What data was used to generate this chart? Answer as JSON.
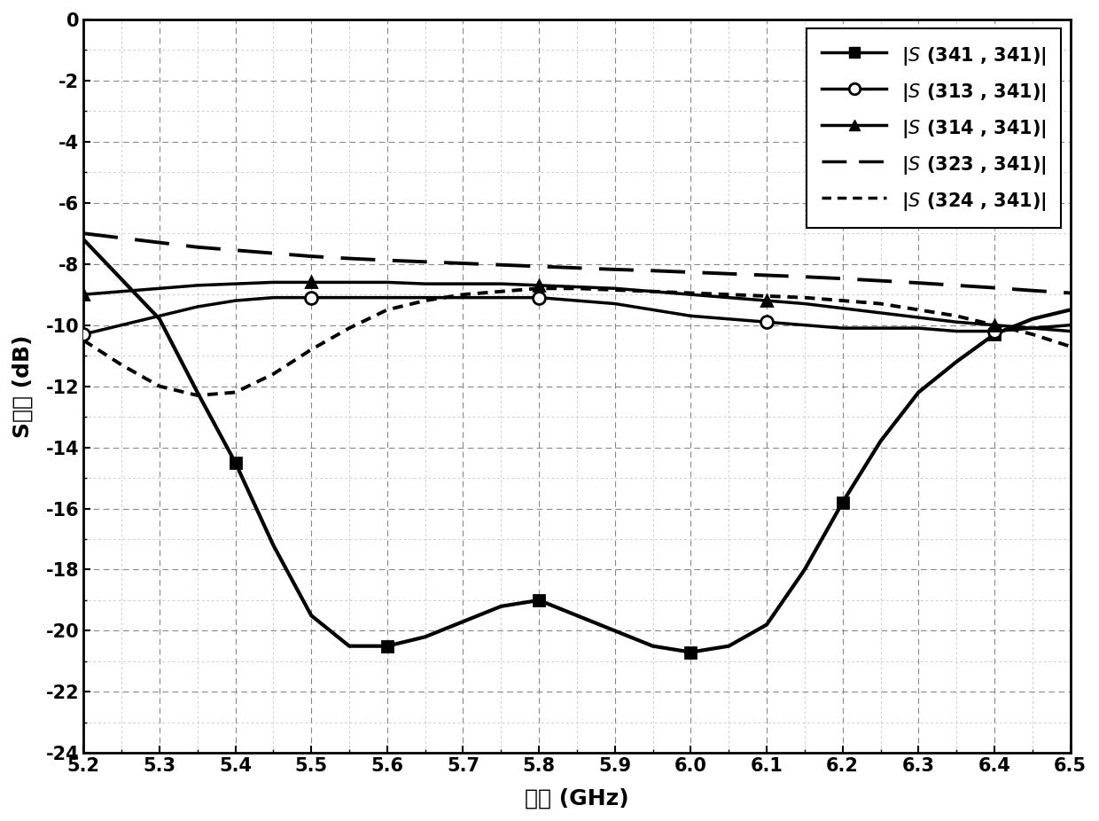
{
  "x_min": 5.2,
  "x_max": 6.5,
  "y_min": -24,
  "y_max": 0,
  "x_ticks": [
    5.2,
    5.3,
    5.4,
    5.5,
    5.6,
    5.7,
    5.8,
    5.9,
    6.0,
    6.1,
    6.2,
    6.3,
    6.4,
    6.5
  ],
  "y_ticks": [
    0,
    -2,
    -4,
    -6,
    -8,
    -10,
    -12,
    -14,
    -16,
    -18,
    -20,
    -22,
    -24
  ],
  "xlabel": "频率 (GHz)",
  "ylabel": "S参数 (dB)",
  "series": [
    {
      "name": "|$\\mathit{S}$ (341 , 341)|",
      "x_markers": [
        5.4,
        5.6,
        5.8,
        6.0,
        6.2,
        6.4
      ],
      "y_markers": [
        -14.5,
        -20.5,
        -19.0,
        -20.7,
        -15.8,
        -10.3
      ],
      "x_smooth": [
        5.2,
        5.25,
        5.3,
        5.35,
        5.4,
        5.45,
        5.5,
        5.55,
        5.6,
        5.65,
        5.7,
        5.75,
        5.8,
        5.85,
        5.9,
        5.95,
        6.0,
        6.05,
        6.1,
        6.15,
        6.2,
        6.25,
        6.3,
        6.35,
        6.4,
        6.45,
        6.5
      ],
      "y_smooth": [
        -7.2,
        -8.5,
        -9.8,
        -12.2,
        -14.5,
        -17.2,
        -19.5,
        -20.5,
        -20.5,
        -20.2,
        -19.7,
        -19.2,
        -19.0,
        -19.5,
        -20.0,
        -20.5,
        -20.7,
        -20.5,
        -19.8,
        -18.0,
        -15.8,
        -13.8,
        -12.2,
        -11.2,
        -10.3,
        -9.8,
        -9.5
      ],
      "color": "#000000",
      "linestyle": "solid",
      "linewidth": 3.0,
      "marker": "s",
      "markersize": 9
    },
    {
      "name": "|$\\mathit{S}$ (313 , 341)|",
      "x_markers": [
        5.2,
        5.5,
        5.8,
        6.1,
        6.4
      ],
      "y_markers": [
        -10.3,
        -9.1,
        -9.1,
        -9.9,
        -10.2
      ],
      "x_smooth": [
        5.2,
        5.25,
        5.3,
        5.35,
        5.4,
        5.45,
        5.5,
        5.55,
        5.6,
        5.65,
        5.7,
        5.75,
        5.8,
        5.85,
        5.9,
        5.95,
        6.0,
        6.05,
        6.1,
        6.15,
        6.2,
        6.25,
        6.3,
        6.35,
        6.4,
        6.45,
        6.5
      ],
      "y_smooth": [
        -10.3,
        -10.0,
        -9.7,
        -9.4,
        -9.2,
        -9.1,
        -9.1,
        -9.1,
        -9.1,
        -9.1,
        -9.1,
        -9.1,
        -9.1,
        -9.2,
        -9.3,
        -9.5,
        -9.7,
        -9.8,
        -9.9,
        -10.0,
        -10.1,
        -10.1,
        -10.1,
        -10.2,
        -10.2,
        -10.1,
        -10.0
      ],
      "color": "#000000",
      "linestyle": "solid",
      "linewidth": 2.5,
      "marker": "o",
      "markersize": 10,
      "markerfacecolor": "white"
    },
    {
      "name": "|$\\mathit{S}$ (314 , 341)|",
      "x_markers": [
        5.2,
        5.5,
        5.8,
        6.1,
        6.4
      ],
      "y_markers": [
        -9.0,
        -8.6,
        -8.7,
        -9.2,
        -10.0
      ],
      "x_smooth": [
        5.2,
        5.25,
        5.3,
        5.35,
        5.4,
        5.45,
        5.5,
        5.55,
        5.6,
        5.65,
        5.7,
        5.75,
        5.8,
        5.85,
        5.9,
        5.95,
        6.0,
        6.05,
        6.1,
        6.15,
        6.2,
        6.25,
        6.3,
        6.35,
        6.4,
        6.45,
        6.5
      ],
      "y_smooth": [
        -9.0,
        -8.9,
        -8.8,
        -8.7,
        -8.65,
        -8.6,
        -8.6,
        -8.6,
        -8.6,
        -8.65,
        -8.65,
        -8.65,
        -8.7,
        -8.75,
        -8.8,
        -8.9,
        -9.0,
        -9.1,
        -9.2,
        -9.3,
        -9.45,
        -9.6,
        -9.75,
        -9.9,
        -10.0,
        -10.1,
        -10.2
      ],
      "color": "#000000",
      "linestyle": "solid",
      "linewidth": 2.5,
      "marker": "^",
      "markersize": 9
    },
    {
      "name": "|$\\mathit{S}$ (323 , 341)|",
      "x_smooth": [
        5.2,
        5.25,
        5.3,
        5.35,
        5.4,
        5.45,
        5.5,
        5.55,
        5.6,
        5.65,
        5.7,
        5.75,
        5.8,
        5.85,
        5.9,
        5.95,
        6.0,
        6.05,
        6.1,
        6.15,
        6.2,
        6.25,
        6.3,
        6.35,
        6.4,
        6.45,
        6.5
      ],
      "y_smooth": [
        -7.0,
        -7.15,
        -7.3,
        -7.45,
        -7.55,
        -7.65,
        -7.75,
        -7.82,
        -7.88,
        -7.93,
        -7.98,
        -8.03,
        -8.08,
        -8.13,
        -8.18,
        -8.22,
        -8.27,
        -8.32,
        -8.37,
        -8.42,
        -8.48,
        -8.55,
        -8.62,
        -8.7,
        -8.78,
        -8.87,
        -8.95
      ],
      "color": "#000000",
      "linestyle": "dashed",
      "linewidth": 2.8,
      "marker": null
    },
    {
      "name": "|$\\mathit{S}$ (324 , 341)|",
      "x_smooth": [
        5.2,
        5.25,
        5.3,
        5.35,
        5.4,
        5.45,
        5.5,
        5.55,
        5.6,
        5.65,
        5.7,
        5.75,
        5.8,
        5.85,
        5.9,
        5.95,
        6.0,
        6.05,
        6.1,
        6.15,
        6.2,
        6.25,
        6.3,
        6.35,
        6.4,
        6.45,
        6.5
      ],
      "y_smooth": [
        -10.5,
        -11.3,
        -12.0,
        -12.3,
        -12.2,
        -11.6,
        -10.8,
        -10.1,
        -9.5,
        -9.2,
        -9.0,
        -8.9,
        -8.8,
        -8.8,
        -8.85,
        -8.9,
        -8.95,
        -9.0,
        -9.05,
        -9.1,
        -9.2,
        -9.3,
        -9.5,
        -9.7,
        -10.0,
        -10.3,
        -10.7
      ],
      "color": "#000000",
      "linestyle": "dotted",
      "linewidth": 2.8,
      "marker": null
    }
  ],
  "grid_major_color": "#888888",
  "grid_minor_color": "#bbbbbb",
  "grid_major_linestyle": "--",
  "grid_minor_linestyle": "--",
  "background_color": "#ffffff",
  "legend_fontsize": 15,
  "axis_label_fontsize": 18,
  "tick_fontsize": 15
}
